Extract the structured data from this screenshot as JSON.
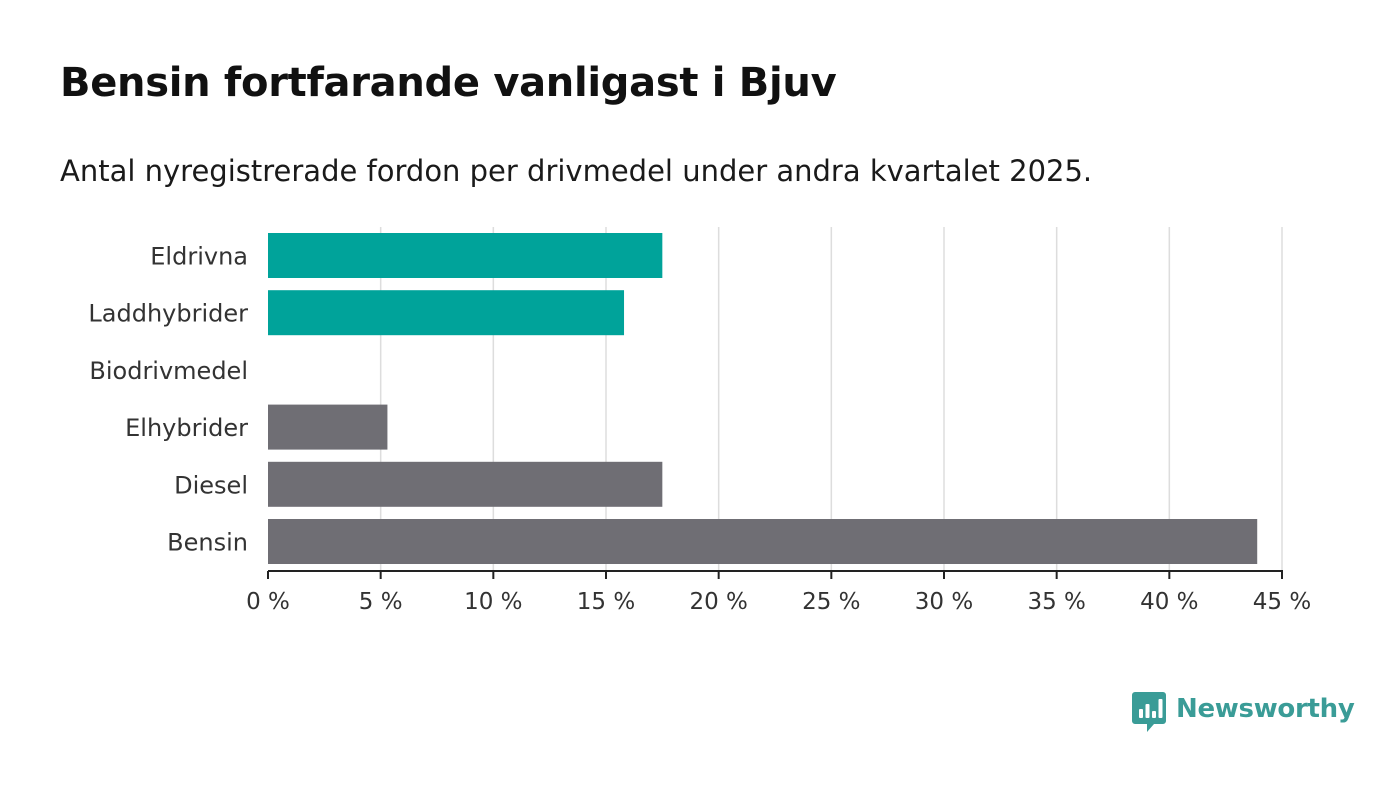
{
  "title": "Bensin fortfarande vanligast i Bjuv",
  "subtitle": "Antal nyregistrerade fordon per drivmedel under andra kvartalet 2025.",
  "brand": {
    "name": "Newsworthy",
    "icon": "newsworthy-logo-icon",
    "color": "#3a9c97"
  },
  "colors": {
    "highlight": "#00a39a",
    "other": "#6f6e74",
    "grid": "#dddddd",
    "axis": "#222222"
  },
  "chart_data": {
    "type": "bar",
    "orientation": "horizontal",
    "categories": [
      "Eldrivna",
      "Laddhybrider",
      "Biodrivmedel",
      "Elhybrider",
      "Diesel",
      "Bensin"
    ],
    "values": [
      17.5,
      15.8,
      0,
      5.3,
      17.5,
      43.9
    ],
    "bar_colors": [
      "#00a39a",
      "#00a39a",
      "#00a39a",
      "#6f6e74",
      "#6f6e74",
      "#6f6e74"
    ],
    "xlim": [
      0,
      45
    ],
    "xticks": [
      0,
      5,
      10,
      15,
      20,
      25,
      30,
      35,
      40,
      45
    ],
    "xtick_labels": [
      "0 %",
      "5 %",
      "10 %",
      "15 %",
      "20 %",
      "25 %",
      "30 %",
      "35 %",
      "40 %",
      "45 %"
    ],
    "grid": true,
    "xlabel": "",
    "ylabel": ""
  }
}
